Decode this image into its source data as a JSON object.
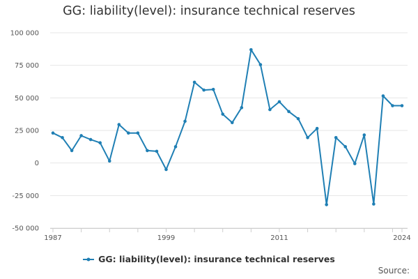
{
  "chart_data": {
    "type": "line",
    "title": "GG: liability(level): insurance technical reserves",
    "xlabel": "",
    "ylabel": "",
    "x": [
      1987,
      1988,
      1989,
      1990,
      1991,
      1992,
      1993,
      1994,
      1995,
      1996,
      1997,
      1998,
      1999,
      2000,
      2001,
      2002,
      2003,
      2004,
      2005,
      2006,
      2007,
      2008,
      2009,
      2010,
      2011,
      2012,
      2013,
      2014,
      2015,
      2016,
      2017,
      2018,
      2019,
      2020,
      2021,
      2022,
      2023,
      2024
    ],
    "series": [
      {
        "name": "GG: liability(level): insurance technical reserves",
        "color": "#1f7fb4",
        "values": [
          23000,
          19500,
          9500,
          21000,
          18000,
          15500,
          1500,
          29500,
          23000,
          23000,
          9500,
          9000,
          -5000,
          12500,
          32000,
          62000,
          56000,
          56500,
          37500,
          31000,
          42500,
          87000,
          75500,
          41000,
          47000,
          39500,
          34000,
          19500,
          26500,
          -32000,
          19500,
          12500,
          -500,
          21500,
          -31500,
          51500,
          44000,
          44000
        ]
      }
    ],
    "ylim": [
      -50000,
      100000
    ],
    "yticks": [
      -50000,
      -25000,
      0,
      25000,
      50000,
      75000,
      100000
    ],
    "ytick_labels": [
      "-50 000",
      "-25 000",
      "0",
      "25 000",
      "50 000",
      "75 000",
      "100 000"
    ],
    "xtick_labels": [
      {
        "year": 1987,
        "label": "1987"
      },
      {
        "year": 1999,
        "label": "1999"
      },
      {
        "year": 2011,
        "label": "2011"
      },
      {
        "year": 2024,
        "label": "2024"
      }
    ],
    "grid": true,
    "legend": "bottom-center"
  },
  "footer": {
    "source_label": "Source:"
  }
}
